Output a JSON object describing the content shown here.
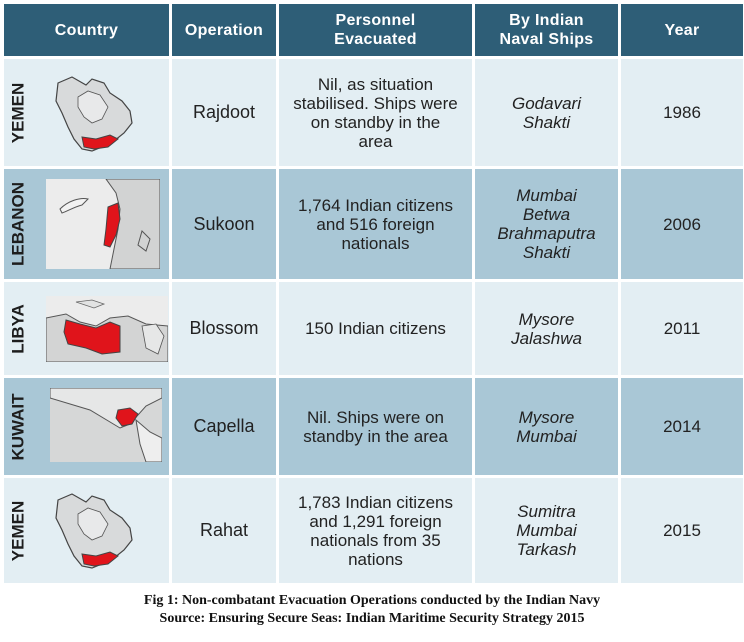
{
  "headers": {
    "country": "Country",
    "operation": "Operation",
    "personnel": "Personnel Evacuated",
    "ships": "By Indian Naval Ships",
    "year": "Year"
  },
  "rows": [
    {
      "country": "YEMEN",
      "operation": "Rajdoot",
      "personnel": "Nil, as situation stabilised. Ships were on standby in the area",
      "ships": "Godavari\nShakti",
      "year": "1986"
    },
    {
      "country": "LEBANON",
      "operation": "Sukoon",
      "personnel": "1,764 Indian citizens and 516 foreign nationals",
      "ships": "Mumbai\nBetwa\nBrahmaputra\nShakti",
      "year": "2006"
    },
    {
      "country": "LIBYA",
      "operation": "Blossom",
      "personnel": "150 Indian citizens",
      "ships": "Mysore\nJalashwa",
      "year": "2011"
    },
    {
      "country": "KUWAIT",
      "operation": "Capella",
      "personnel": "Nil. Ships were on standby in the area",
      "ships": "Mysore\nMumbai",
      "year": "2014"
    },
    {
      "country": "YEMEN",
      "operation": "Rahat",
      "personnel": "1,783 Indian citizens and 1,291 foreign nationals from 35 nations",
      "ships": "Sumitra\nMumbai\nTarkash",
      "year": "2015"
    }
  ],
  "caption": {
    "line1": "Fig 1: Non-combatant Evacuation Operations conducted by the Indian Navy",
    "line2": "Source: Ensuring Secure Seas: Indian Maritime Security Strategy 2015"
  },
  "colors": {
    "header_bg": "#2e5e77",
    "row_light": "#e3eef3",
    "row_dark": "#a9c7d6",
    "highlight": "#e0141b"
  },
  "icons": [
    "yemen-map-icon",
    "lebanon-map-icon",
    "libya-map-icon",
    "kuwait-map-icon",
    "yemen-map-icon"
  ]
}
